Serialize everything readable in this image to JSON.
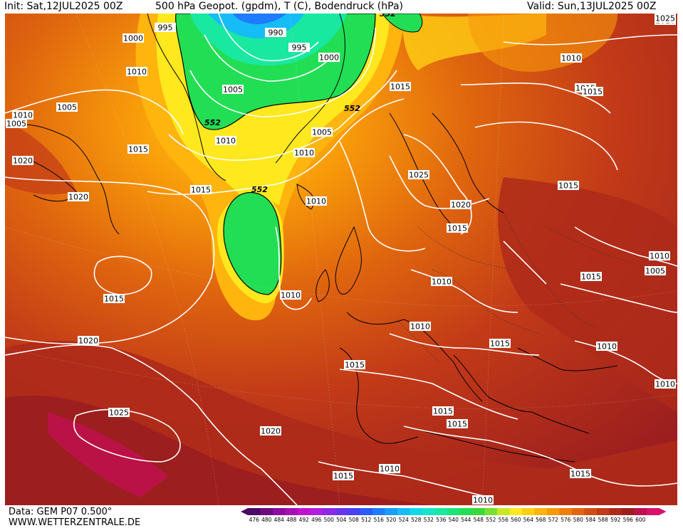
{
  "header": {
    "init": "Init: Sat,12JUL2025 00Z",
    "title": "500 hPa Geopot. (gpdm), T (C), Bodendruck (hPa)",
    "valid": "Valid: Sun,13JUL2025 00Z"
  },
  "footer": {
    "data_source": "Data: GEM P07 0.500°",
    "website": "WWW.WETTERZENTRALE.DE"
  },
  "colorbar": {
    "ticks": [
      "476",
      "480",
      "484",
      "488",
      "492",
      "496",
      "500",
      "504",
      "508",
      "512",
      "516",
      "520",
      "524",
      "528",
      "532",
      "536",
      "540",
      "544",
      "548",
      "552",
      "556",
      "560",
      "564",
      "568",
      "572",
      "576",
      "580",
      "584",
      "588",
      "592",
      "596",
      "600"
    ],
    "colors": [
      "#4b0a63",
      "#6d0c7f",
      "#8a0e9b",
      "#a510b5",
      "#c012cf",
      "#b01ee0",
      "#8a2ae8",
      "#6a34ef",
      "#4a40f4",
      "#2a5cf8",
      "#1f7cfa",
      "#1a9cfa",
      "#16bcf6",
      "#14d8ea",
      "#16e6c8",
      "#18e8a0",
      "#1ce47a",
      "#22de54",
      "#3ad83a",
      "#78e030",
      "#c8e826",
      "#ffe81e",
      "#ffcf14",
      "#ffb40e",
      "#f89a0a",
      "#ec800a",
      "#e0660e",
      "#d24e14",
      "#c23a18",
      "#ae2a1a",
      "#9c1e1e",
      "#c0104e",
      "#d8126c"
    ]
  },
  "map": {
    "pressure_labels": [
      "1000",
      "995",
      "990",
      "995",
      "1000",
      "1005",
      "1010",
      "1015",
      "1020",
      "1025"
    ],
    "isobar_labels": [
      {
        "text": "1010"
      },
      {
        "text": "1000"
      },
      {
        "text": "995"
      },
      {
        "text": "990"
      },
      {
        "text": "995"
      },
      {
        "text": "1000"
      },
      {
        "text": "1010"
      },
      {
        "text": "1005"
      },
      {
        "text": "1010"
      },
      {
        "text": "1005"
      },
      {
        "text": "1015"
      },
      {
        "text": "1005"
      },
      {
        "text": "1010"
      },
      {
        "text": "1020"
      },
      {
        "text": "1005"
      },
      {
        "text": "1010"
      },
      {
        "text": "1015"
      },
      {
        "text": "1025"
      },
      {
        "text": "1010"
      },
      {
        "text": "1015"
      },
      {
        "text": "1015"
      },
      {
        "text": "1025"
      },
      {
        "text": "1015"
      },
      {
        "text": "1020"
      },
      {
        "text": "1015"
      },
      {
        "text": "1020"
      },
      {
        "text": "1015"
      },
      {
        "text": "1010"
      },
      {
        "text": "1010"
      },
      {
        "text": "1005"
      },
      {
        "text": "1015"
      },
      {
        "text": "1010"
      },
      {
        "text": "1015"
      },
      {
        "text": "1010"
      },
      {
        "text": "1015"
      },
      {
        "text": "1010"
      },
      {
        "text": "1020"
      },
      {
        "text": "1015"
      },
      {
        "text": "1025"
      },
      {
        "text": "1020"
      },
      {
        "text": "1015"
      },
      {
        "text": "1015"
      },
      {
        "text": "1010"
      },
      {
        "text": "1015"
      },
      {
        "text": "1010"
      },
      {
        "text": "1010"
      },
      {
        "text": "1010"
      },
      {
        "text": "1015"
      }
    ],
    "contour_552_labels": [
      "552",
      "552",
      "552",
      "552"
    ]
  }
}
